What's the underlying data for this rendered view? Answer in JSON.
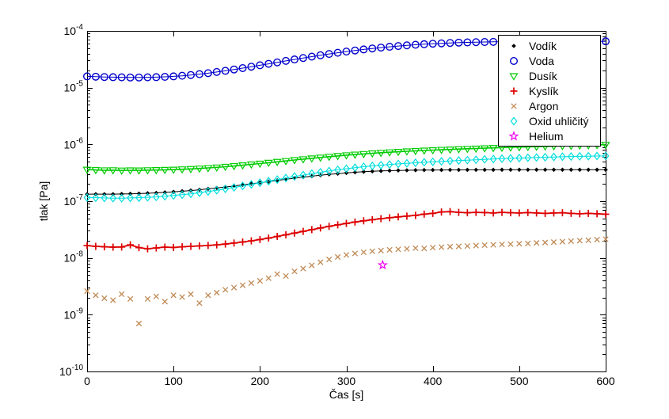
{
  "chart_data": {
    "type": "scatter",
    "title": "",
    "xlabel": "Čas [s]",
    "ylabel": "tlak [Pa]",
    "xlim": [
      0,
      600
    ],
    "ylim": [
      1e-10,
      0.0001
    ],
    "yscale": "log",
    "grid": false,
    "legend_position": "top-right-inside",
    "x_ticks": [
      0,
      100,
      200,
      300,
      400,
      500,
      600
    ],
    "y_tick_exponents": [
      -10,
      -9,
      -8,
      -7,
      -6,
      -5,
      -4
    ],
    "x": [
      0,
      10,
      20,
      30,
      40,
      50,
      60,
      70,
      80,
      90,
      100,
      110,
      120,
      130,
      140,
      150,
      160,
      170,
      180,
      190,
      200,
      210,
      220,
      230,
      240,
      250,
      260,
      270,
      280,
      290,
      300,
      310,
      320,
      330,
      340,
      350,
      360,
      370,
      380,
      390,
      400,
      410,
      420,
      430,
      440,
      450,
      460,
      470,
      480,
      490,
      500,
      510,
      520,
      530,
      540,
      550,
      560,
      570,
      580,
      590,
      600
    ],
    "series": [
      {
        "id": "vodik",
        "name": "Vodík",
        "color": "#000000",
        "marker": "diamond-filled",
        "line": true,
        "line_width": 1,
        "values": [
          1.33e-07,
          1.33e-07,
          1.33e-07,
          1.33e-07,
          1.34e-07,
          1.35e-07,
          1.36e-07,
          1.38e-07,
          1.4e-07,
          1.43e-07,
          1.46e-07,
          1.5e-07,
          1.54e-07,
          1.59e-07,
          1.65e-07,
          1.71e-07,
          1.78e-07,
          1.86e-07,
          1.94e-07,
          2.03e-07,
          2.12e-07,
          2.22e-07,
          2.32e-07,
          2.43e-07,
          2.54e-07,
          2.65e-07,
          2.76e-07,
          2.87e-07,
          2.97e-07,
          3.06e-07,
          3.15e-07,
          3.23e-07,
          3.3e-07,
          3.36e-07,
          3.41e-07,
          3.45e-07,
          3.48e-07,
          3.5e-07,
          3.52e-07,
          3.54e-07,
          3.55e-07,
          3.55e-07,
          3.56e-07,
          3.56e-07,
          3.57e-07,
          3.57e-07,
          3.57e-07,
          3.57e-07,
          3.58e-07,
          3.58e-07,
          3.58e-07,
          3.58e-07,
          3.58e-07,
          3.58e-07,
          3.58e-07,
          3.58e-07,
          3.58e-07,
          3.58e-07,
          3.58e-07,
          3.58e-07,
          3.58e-07
        ]
      },
      {
        "id": "voda",
        "name": "Voda",
        "color": "#0000cc",
        "marker": "circle",
        "line": true,
        "line_width": 1,
        "values": [
          1.58e-05,
          1.56e-05,
          1.54e-05,
          1.53e-05,
          1.52e-05,
          1.51e-05,
          1.51e-05,
          1.52e-05,
          1.53e-05,
          1.55e-05,
          1.58e-05,
          1.62e-05,
          1.67e-05,
          1.73e-05,
          1.8e-05,
          1.89e-05,
          1.98e-05,
          2.09e-05,
          2.21e-05,
          2.34e-05,
          2.48e-05,
          2.63e-05,
          2.79e-05,
          2.96e-05,
          3.14e-05,
          3.33e-05,
          3.52e-05,
          3.72e-05,
          3.92e-05,
          4.12e-05,
          4.32e-05,
          4.52e-05,
          4.71e-05,
          4.9e-05,
          5.08e-05,
          5.25e-05,
          5.41e-05,
          5.56e-05,
          5.7e-05,
          5.83e-05,
          5.94e-05,
          6.04e-05,
          6.13e-05,
          6.21e-05,
          6.27e-05,
          6.33e-05,
          6.37e-05,
          6.41e-05,
          6.44e-05,
          6.47e-05,
          6.49e-05,
          6.5e-05,
          6.51e-05,
          6.52e-05,
          6.53e-05,
          6.53e-05,
          6.54e-05,
          6.54e-05,
          6.54e-05,
          6.55e-05,
          6.55e-05
        ]
      },
      {
        "id": "dusik",
        "name": "Dusík",
        "color": "#00cc00",
        "marker": "triangle-down",
        "line": true,
        "line_width": 1.6,
        "values": [
          3.6e-07,
          3.55e-07,
          3.51e-07,
          3.52e-07,
          3.48e-07,
          3.5e-07,
          3.49e-07,
          3.52e-07,
          3.54e-07,
          3.57e-07,
          3.6e-07,
          3.65e-07,
          3.7e-07,
          3.77e-07,
          3.85e-07,
          3.94e-07,
          4.05e-07,
          4.17e-07,
          4.3e-07,
          4.45e-07,
          4.6e-07,
          4.77e-07,
          4.94e-07,
          5.12e-07,
          5.31e-07,
          5.5e-07,
          5.69e-07,
          5.89e-07,
          6.08e-07,
          6.27e-07,
          6.46e-07,
          6.64e-07,
          6.81e-07,
          6.98e-07,
          7.14e-07,
          7.29e-07,
          7.43e-07,
          7.57e-07,
          7.7e-07,
          7.82e-07,
          7.94e-07,
          8.05e-07,
          8.16e-07,
          8.27e-07,
          8.38e-07,
          8.48e-07,
          8.58e-07,
          8.68e-07,
          8.78e-07,
          8.88e-07,
          8.97e-07,
          9.07e-07,
          9.16e-07,
          9.25e-07,
          9.34e-07,
          9.43e-07,
          9.52e-07,
          9.61e-07,
          9.7e-07,
          9.79e-07,
          9.88e-07
        ]
      },
      {
        "id": "kyslik",
        "name": "Kyslík",
        "color": "#dd0000",
        "marker": "plus",
        "line": true,
        "line_width": 1.8,
        "values": [
          1.65e-08,
          1.6e-08,
          1.57e-08,
          1.55e-08,
          1.56e-08,
          1.7e-08,
          1.52e-08,
          1.45e-08,
          1.5e-08,
          1.55e-08,
          1.53e-08,
          1.57e-08,
          1.6e-08,
          1.63e-08,
          1.66e-08,
          1.7e-08,
          1.76e-08,
          1.83e-08,
          1.91e-08,
          2e-08,
          2.11e-08,
          2.24e-08,
          2.39e-08,
          2.56e-08,
          2.74e-08,
          2.94e-08,
          3.15e-08,
          3.37e-08,
          3.6e-08,
          3.83e-08,
          4.06e-08,
          4.29e-08,
          4.51e-08,
          4.72e-08,
          4.92e-08,
          5.11e-08,
          5.29e-08,
          5.46e-08,
          5.62e-08,
          5.91e-08,
          6.1e-08,
          6.45e-08,
          6.55e-08,
          6.35e-08,
          6.25e-08,
          6.35e-08,
          6.3e-08,
          6.2e-08,
          6.35e-08,
          6.25e-08,
          6.2e-08,
          6.3e-08,
          6.2e-08,
          6.1e-08,
          6.2e-08,
          6.25e-08,
          6.1e-08,
          6e-08,
          6.1e-08,
          6e-08,
          5.9e-08
        ]
      },
      {
        "id": "argon",
        "name": "Argon",
        "color": "#c08a55",
        "marker": "x-cross",
        "line": false,
        "line_width": 0,
        "values": [
          2.6e-09,
          2.2e-09,
          1.95e-09,
          1.8e-09,
          2.3e-09,
          1.9e-09,
          7e-10,
          1.9e-09,
          2.1e-09,
          1.7e-09,
          2.2e-09,
          2.05e-09,
          2.3e-09,
          1.6e-09,
          2.2e-09,
          2.45e-09,
          2.75e-09,
          3e-09,
          3.3e-09,
          3.6e-09,
          3.95e-09,
          4.4e-09,
          5.2e-09,
          4.8e-09,
          5.8e-09,
          6.5e-09,
          7.4e-09,
          8.4e-09,
          9.4e-09,
          1.04e-08,
          1.13e-08,
          1.2e-08,
          1.26e-08,
          1.31e-08,
          1.35e-08,
          1.39e-08,
          1.42e-08,
          1.45e-08,
          1.49e-08,
          1.47e-08,
          1.52e-08,
          1.55e-08,
          1.58e-08,
          1.6e-08,
          1.62e-08,
          1.65e-08,
          1.68e-08,
          1.7e-08,
          1.73e-08,
          1.75e-08,
          1.78e-08,
          1.8e-08,
          1.84e-08,
          1.87e-08,
          1.9e-08,
          1.94e-08,
          1.98e-08,
          2.02e-08,
          2.05e-08,
          2.1e-08,
          2.14e-08
        ]
      },
      {
        "id": "oxid-uhlicity",
        "name": "Oxid uhličitý",
        "color": "#00dede",
        "marker": "diamond-open",
        "line": true,
        "line_width": 1,
        "values": [
          1.16e-07,
          1.15e-07,
          1.14e-07,
          1.13e-07,
          1.13e-07,
          1.14e-07,
          1.15e-07,
          1.17e-07,
          1.19e-07,
          1.22e-07,
          1.26e-07,
          1.3e-07,
          1.35e-07,
          1.41e-07,
          1.48e-07,
          1.56e-07,
          1.65e-07,
          1.75e-07,
          1.86e-07,
          1.98e-07,
          2.11e-07,
          2.25e-07,
          2.4e-07,
          2.56e-07,
          2.72e-07,
          2.89e-07,
          3.06e-07,
          3.23e-07,
          3.4e-07,
          3.57e-07,
          3.73e-07,
          3.89e-07,
          4.04e-07,
          4.18e-07,
          4.31e-07,
          4.43e-07,
          4.54e-07,
          4.65e-07,
          4.75e-07,
          4.85e-07,
          4.94e-07,
          5.03e-07,
          5.12e-07,
          5.21e-07,
          5.29e-07,
          5.37e-07,
          5.45e-07,
          5.53e-07,
          5.61e-07,
          5.68e-07,
          5.75e-07,
          5.82e-07,
          5.89e-07,
          5.95e-07,
          6.01e-07,
          6.07e-07,
          6.12e-07,
          6.17e-07,
          6.21e-07,
          6.25e-07,
          6.29e-07
        ]
      },
      {
        "id": "helium",
        "name": "Helium",
        "color": "#ee00ee",
        "marker": "pentagram",
        "line": false,
        "line_width": 0,
        "x": [
          342
        ],
        "values": [
          7.5e-09
        ]
      }
    ]
  }
}
